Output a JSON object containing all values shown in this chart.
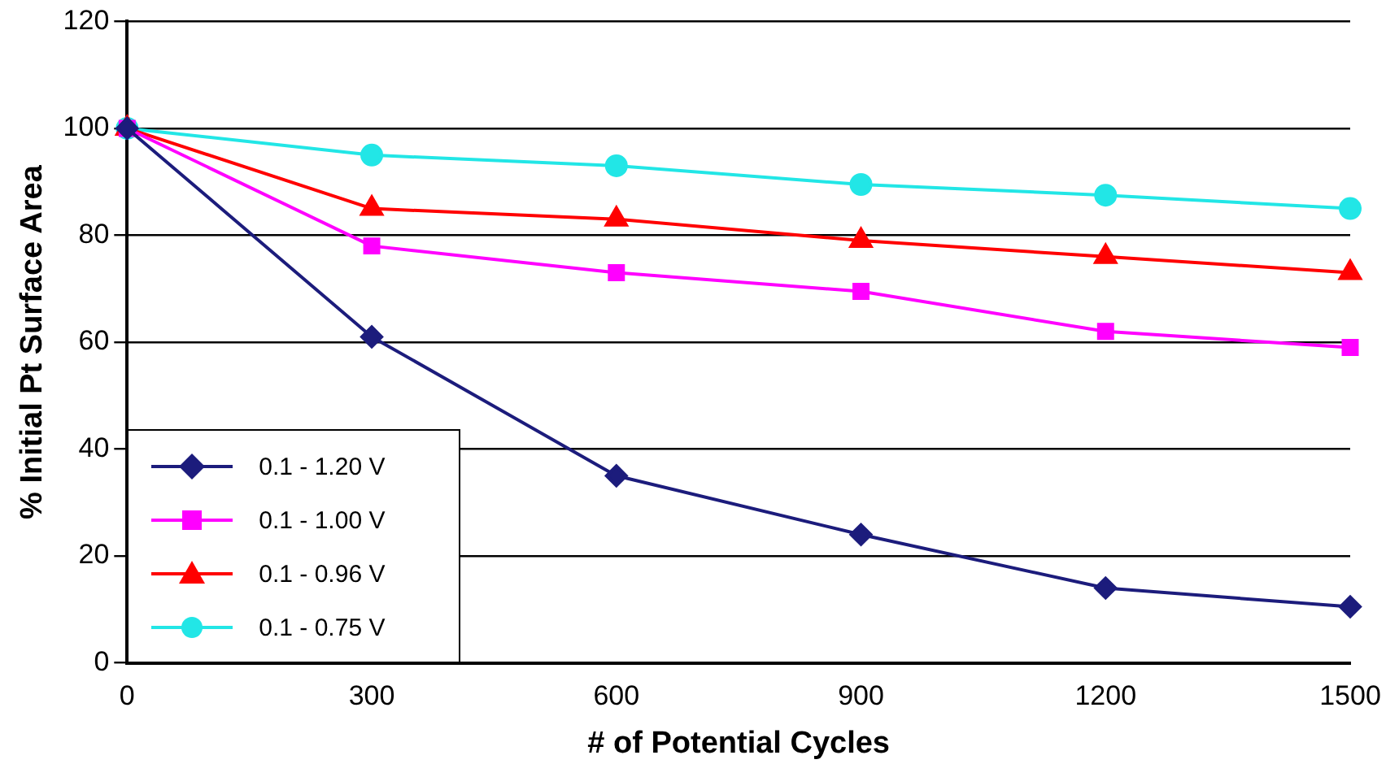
{
  "chart_data": {
    "type": "line",
    "xlabel": "# of Potential Cycles",
    "ylabel": "% Initial Pt Surface Area",
    "x": [
      0,
      300,
      600,
      900,
      1200,
      1500
    ],
    "xlim": [
      0,
      1500
    ],
    "xticks": [
      0,
      300,
      600,
      900,
      1200,
      1500
    ],
    "ylim": [
      0,
      120
    ],
    "yticks": [
      0,
      20,
      40,
      60,
      80,
      100,
      120
    ],
    "grid": "y",
    "legend": "bottom left",
    "line_style": "solid",
    "series": [
      {
        "name": "0.1 - 1.20 V",
        "color": "#1c1c7c",
        "marker": "diamond",
        "values": [
          100,
          61,
          35,
          24,
          14,
          10.5
        ]
      },
      {
        "name": "0.1 - 1.00 V",
        "color": "#ff00ff",
        "marker": "square",
        "values": [
          100,
          78,
          73,
          69.5,
          62,
          59
        ]
      },
      {
        "name": "0.1 - 0.96 V",
        "color": "#ff0000",
        "marker": "triangle",
        "values": [
          100,
          85,
          83,
          79,
          76,
          73
        ]
      },
      {
        "name": "0.1 - 0.75 V",
        "color": "#22e6e6",
        "marker": "circle",
        "values": [
          100,
          95,
          93,
          89.5,
          87.5,
          85
        ]
      }
    ]
  }
}
